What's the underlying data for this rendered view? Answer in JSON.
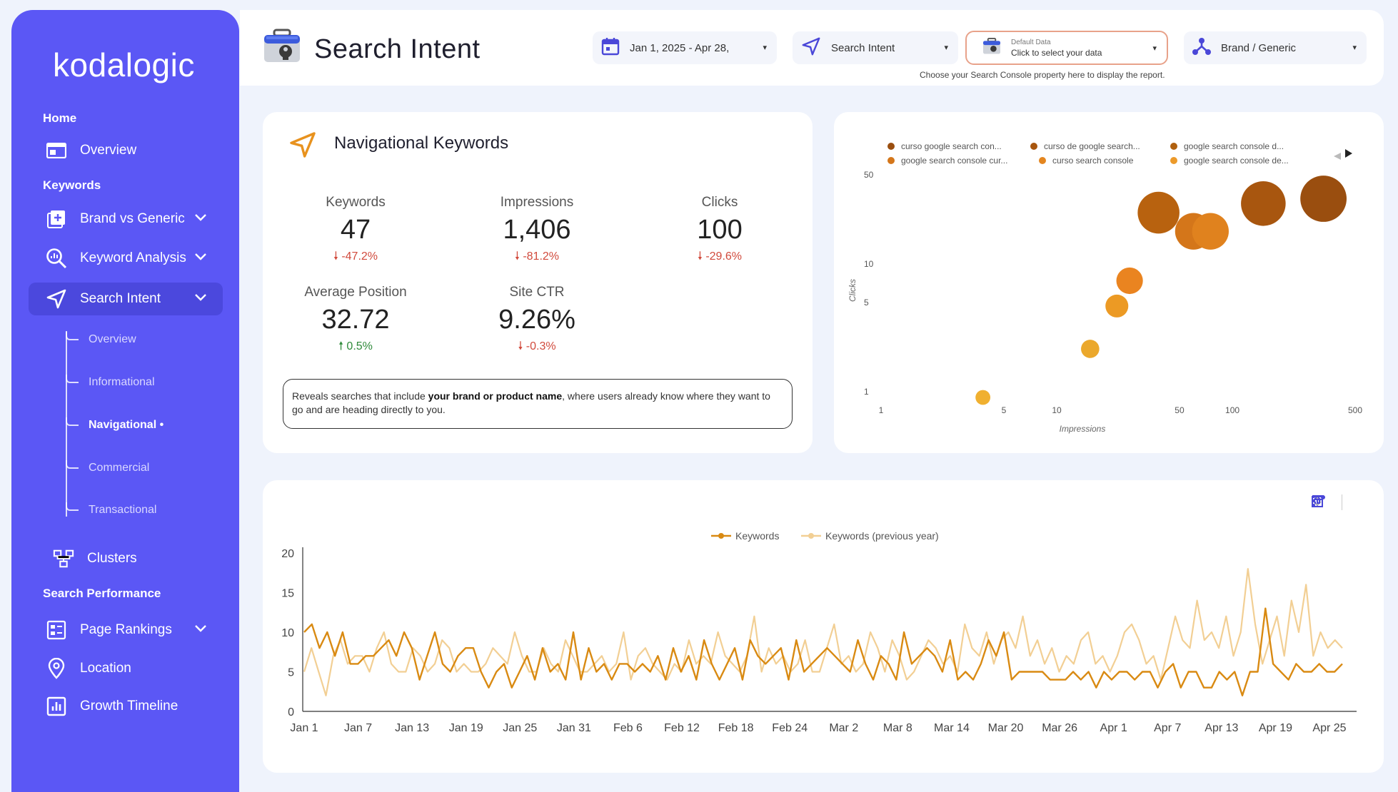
{
  "sidebar": {
    "logo": "kodalogic",
    "sections": {
      "home": "Home",
      "keywords": "Keywords",
      "search_performance": "Search Performance"
    },
    "items": {
      "overview": "Overview",
      "brand_vs_generic": "Brand vs Generic",
      "keyword_analysis": "Keyword Analysis",
      "search_intent": "Search Intent",
      "clusters": "Clusters",
      "page_rankings": "Page Rankings",
      "location": "Location",
      "growth_timeline": "Growth Timeline"
    },
    "subitems": {
      "overview": "Overview",
      "informational": "Informational",
      "navigational": "Navigational •",
      "commercial": "Commercial",
      "transactional": "Transactional"
    }
  },
  "header": {
    "title": "Search Intent",
    "date_range": "Jan 1, 2025 - Apr 28,",
    "intent_filter": "Search Intent",
    "data_source_small": "Default Data",
    "data_source_main": "Click to select your data",
    "brand_filter": "Brand / Generic",
    "help_text": "Choose your Search Console property here to display the report."
  },
  "kpi": {
    "title": "Navigational Keywords",
    "metrics": {
      "keywords": {
        "label": "Keywords",
        "value": "47",
        "delta": "-47.2%"
      },
      "impressions": {
        "label": "Impressions",
        "value": "1,406",
        "delta": "-81.2%"
      },
      "clicks": {
        "label": "Clicks",
        "value": "100",
        "delta": "-29.6%"
      },
      "avg_position": {
        "label": "Average Position",
        "value": "32.72",
        "delta": "0.5%"
      },
      "site_ctr": {
        "label": "Site CTR",
        "value": "9.26%",
        "delta": "-0.3%"
      }
    },
    "description_pre": "Reveals searches that include ",
    "description_bold": "your brand or product name",
    "description_post": ", where users already know where they want to go and are heading directly to you."
  },
  "colors": {
    "sidebar": "#5b57f5",
    "accent_orange": "#e8821e",
    "series_current": "#d98a12",
    "series_previous": "#f2cf94",
    "negative": "#d14a3c",
    "positive": "#2f8a3a"
  },
  "chart_data": [
    {
      "type": "scatter",
      "xlabel": "Impressions",
      "ylabel": "Clicks",
      "x_scale": "log",
      "y_scale": "log",
      "x_ticks": [
        "1",
        "5",
        "10",
        "50",
        "100",
        "500"
      ],
      "y_ticks": [
        "1",
        "5",
        "10",
        "50"
      ],
      "legend_position": "top",
      "legend": [
        {
          "name": "curso google search con...",
          "color": "#9a4e0f"
        },
        {
          "name": "curso de google search...",
          "color": "#a8560f"
        },
        {
          "name": "google search console d...",
          "color": "#b0600f"
        },
        {
          "name": "google search console cur...",
          "color": "#d4761a"
        },
        {
          "name": "curso search console",
          "color": "#e4861f"
        },
        {
          "name": "google search console de...",
          "color": "#ec9a2a"
        }
      ],
      "points": [
        {
          "x": 3.8,
          "y": 1,
          "color": "#f0b030"
        },
        {
          "x": 15.5,
          "y": 2.4,
          "color": "#eba82c"
        },
        {
          "x": 22,
          "y": 5.2,
          "color": "#ec9a24"
        },
        {
          "x": 26,
          "y": 8.2,
          "color": "#ea8420"
        },
        {
          "x": 38,
          "y": 28,
          "color": "#b8620f"
        },
        {
          "x": 60,
          "y": 20,
          "color": "#d4761a"
        },
        {
          "x": 75,
          "y": 20,
          "color": "#e0821e"
        },
        {
          "x": 150,
          "y": 33,
          "color": "#a8560f"
        },
        {
          "x": 330,
          "y": 36,
          "color": "#9a4e0f"
        }
      ]
    },
    {
      "type": "line",
      "legend": [
        "Keywords",
        "Keywords (previous year)"
      ],
      "legend_position": "top",
      "ylim": [
        0,
        20
      ],
      "y_ticks": [
        0,
        5,
        10,
        15,
        20
      ],
      "x_tick_labels": [
        "Jan 1",
        "Jan 7",
        "Jan 13",
        "Jan 19",
        "Jan 25",
        "Jan 31",
        "Feb 6",
        "Feb 12",
        "Feb 18",
        "Feb 24",
        "Mar 2",
        "Mar 8",
        "Mar 14",
        "Mar 20",
        "Mar 26",
        "Apr 1",
        "Apr 7",
        "Apr 13",
        "Apr 19",
        "Apr 25"
      ],
      "series": [
        {
          "name": "Keywords",
          "values": [
            10,
            11,
            8,
            10,
            7,
            10,
            6,
            6,
            7,
            7,
            8,
            9,
            7,
            10,
            8,
            4,
            7,
            10,
            6,
            5,
            7,
            8,
            8,
            5,
            3,
            5,
            6,
            3,
            5,
            7,
            4,
            8,
            5,
            6,
            4,
            10,
            4,
            8,
            5,
            6,
            4,
            6,
            6,
            5,
            6,
            5,
            7,
            4,
            8,
            5,
            7,
            4,
            9,
            6,
            4,
            6,
            8,
            4,
            9,
            7,
            6,
            7,
            8,
            4,
            9,
            5,
            6,
            7,
            8,
            7,
            6,
            5,
            9,
            6,
            4,
            7,
            6,
            4,
            10,
            6,
            7,
            8,
            7,
            5,
            9,
            4,
            5,
            4,
            6,
            9,
            7,
            10,
            4,
            5,
            5,
            5,
            5,
            4,
            4,
            4,
            5,
            4,
            5,
            3,
            5,
            4,
            5,
            5,
            4,
            5,
            5,
            3,
            5,
            6,
            3,
            5,
            5,
            3,
            3,
            5,
            4,
            5,
            2,
            5,
            5,
            13,
            6,
            5,
            4,
            6,
            5,
            5,
            6,
            5,
            5,
            6
          ]
        },
        {
          "name": "Keywords (previous year)",
          "values": [
            5,
            8,
            5,
            2,
            7,
            9,
            6,
            7,
            7,
            5,
            8,
            10,
            6,
            5,
            5,
            8,
            7,
            5,
            6,
            9,
            8,
            5,
            6,
            5,
            5,
            6,
            8,
            7,
            6,
            10,
            7,
            5,
            5,
            8,
            6,
            5,
            9,
            7,
            5,
            5,
            6,
            7,
            5,
            6,
            10,
            4,
            7,
            8,
            6,
            5,
            4,
            6,
            5,
            9,
            6,
            7,
            6,
            10,
            7,
            6,
            5,
            7,
            12,
            5,
            8,
            6,
            7,
            5,
            6,
            9,
            5,
            5,
            8,
            11,
            6,
            7,
            5,
            6,
            10,
            8,
            5,
            9,
            7,
            4,
            5,
            7,
            9,
            8,
            6,
            7,
            5,
            11,
            8,
            7,
            10,
            6,
            9,
            10,
            8,
            12,
            7,
            9,
            6,
            8,
            5,
            7,
            6,
            9,
            10,
            6,
            7,
            5,
            7,
            10,
            11,
            9,
            6,
            7,
            4,
            8,
            12,
            9,
            8,
            14,
            9,
            10,
            8,
            12,
            7,
            10,
            18,
            11,
            6,
            9,
            12,
            7,
            14,
            10,
            16,
            7,
            10,
            8,
            9,
            8
          ]
        }
      ]
    }
  ]
}
